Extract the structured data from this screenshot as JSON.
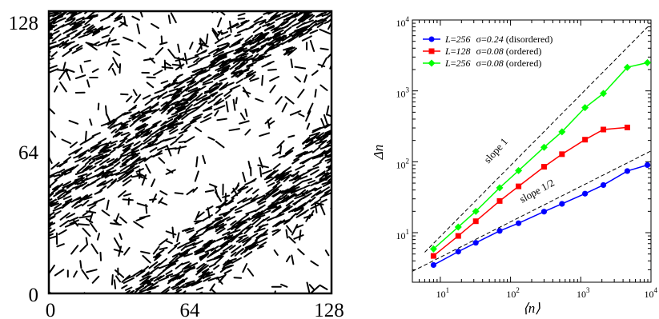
{
  "snapshot_panel": {
    "x_ticks": [
      "0",
      "64",
      "128"
    ],
    "y_ticks": [
      "0",
      "64",
      "128"
    ],
    "glyph": "rod-particles",
    "color": "#000000"
  },
  "chart_data": {
    "type": "line",
    "xlabel": "⟨n⟩",
    "ylabel": "Δn",
    "x_scale": "log",
    "y_scale": "log",
    "xlim": [
      4,
      10000
    ],
    "ylim": [
      2,
      10000
    ],
    "x_ticks": [
      {
        "base": "10",
        "exp": "1"
      },
      {
        "base": "10",
        "exp": "2"
      },
      {
        "base": "10",
        "exp": "3"
      },
      {
        "base": "10",
        "exp": "4"
      }
    ],
    "y_ticks": [
      {
        "base": "10",
        "exp": "1"
      },
      {
        "base": "10",
        "exp": "2"
      },
      {
        "base": "10",
        "exp": "3"
      },
      {
        "base": "10",
        "exp": "4"
      }
    ],
    "grid": false,
    "legend": "top-left",
    "series": [
      {
        "legend": {
          "L": "L",
          "eq1": "=",
          "Lval": "256",
          "sigma": "σ",
          "eq2": "=",
          "sval": "0.24",
          "state": " (disordered)"
        },
        "color": "#0000ff",
        "marker": "circle",
        "x": [
          8,
          18,
          32,
          70,
          130,
          300,
          540,
          1150,
          2100,
          4600,
          8900
        ],
        "y": [
          3.5,
          5.4,
          7.2,
          10.6,
          13.6,
          19.8,
          25.5,
          35.5,
          47,
          74,
          90
        ]
      },
      {
        "legend": {
          "L": "L",
          "eq1": "=",
          "Lval": "128",
          "sigma": "σ",
          "eq2": "=",
          "sval": "0.08",
          "state": " (ordered)"
        },
        "color": "#ff0000",
        "marker": "square",
        "x": [
          8,
          18,
          32,
          70,
          130,
          300,
          540,
          1150,
          2100,
          4600
        ],
        "y": [
          4.7,
          9,
          14.5,
          28,
          45,
          85,
          128,
          205,
          285,
          305
        ]
      },
      {
        "legend": {
          "L": "L",
          "eq1": "=",
          "Lval": "256",
          "sigma": "σ",
          "eq2": "=",
          "sval": "0.08",
          "state": " (ordered)"
        },
        "color": "#00ff00",
        "marker": "diamond",
        "x": [
          8,
          18,
          32,
          70,
          130,
          300,
          540,
          1150,
          2100,
          4600,
          8900
        ],
        "y": [
          5.9,
          12,
          20,
          43,
          75,
          160,
          265,
          580,
          920,
          2150,
          2500
        ]
      }
    ],
    "reference_lines": [
      {
        "label": "slope 1",
        "x": [
          6,
          9000
        ],
        "y": [
          5.3,
          8000
        ],
        "style": "dashed"
      },
      {
        "label": "slope 1/2",
        "x": [
          4,
          10000
        ],
        "y": [
          2.85,
          142
        ],
        "style": "dashed"
      }
    ]
  }
}
